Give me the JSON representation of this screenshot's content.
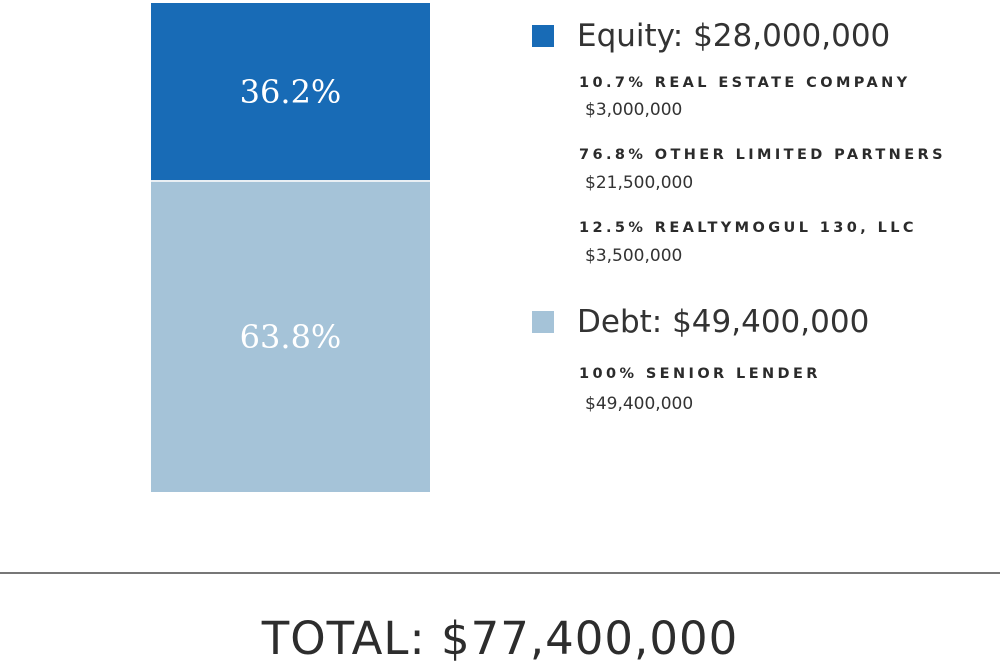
{
  "chart_data": {
    "type": "bar",
    "stacked": true,
    "orientation": "vertical",
    "series": [
      {
        "name": "Equity",
        "percent": 36.2,
        "percent_label": "36.2%",
        "amount": 28000000,
        "color": "#186bb6"
      },
      {
        "name": "Debt",
        "percent": 63.8,
        "percent_label": "63.8%",
        "amount": 49400000,
        "color": "#a5c3d8"
      }
    ]
  },
  "legend": {
    "equity": {
      "label": "Equity:  $28,000,000",
      "color": "#186bb6",
      "items": [
        {
          "pct_label": "10.7% REAL ESTATE COMPANY",
          "amount": "$3,000,000"
        },
        {
          "pct_label": "76.8% OTHER LIMITED PARTNERS",
          "amount": "$21,500,000"
        },
        {
          "pct_label": "12.5% REALTYMOGUL 130, LLC",
          "amount": "$3,500,000"
        }
      ]
    },
    "debt": {
      "label": "Debt:  $49,400,000",
      "color": "#a5c3d8",
      "items": [
        {
          "pct_label": "100% SENIOR LENDER",
          "amount": "$49,400,000"
        }
      ]
    }
  },
  "total": {
    "label": "TOTAL:  $77,400,000"
  }
}
